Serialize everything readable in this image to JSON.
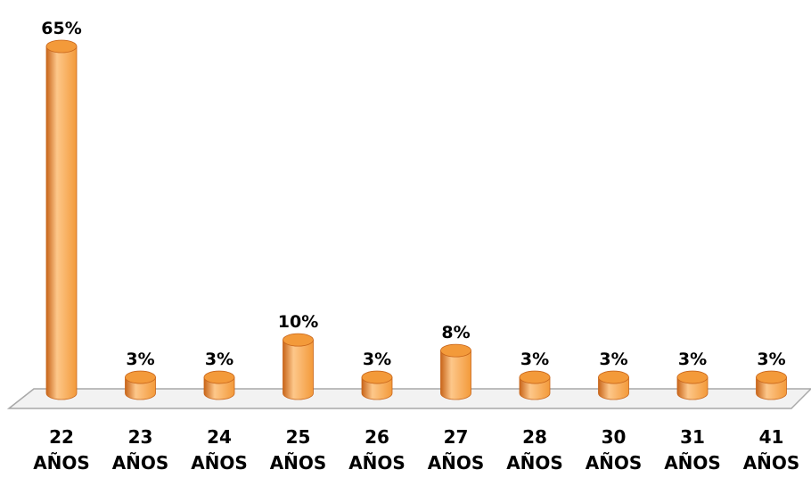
{
  "chart_data": {
    "type": "bar",
    "title": "",
    "xlabel": "",
    "ylabel": "",
    "categories": [
      [
        "22",
        "AÑOS"
      ],
      [
        "23",
        "AÑOS"
      ],
      [
        "24",
        "AÑOS"
      ],
      [
        "25",
        "AÑOS"
      ],
      [
        "26",
        "AÑOS"
      ],
      [
        "27",
        "AÑOS"
      ],
      [
        "28",
        "AÑOS"
      ],
      [
        "30",
        "AÑOS"
      ],
      [
        "31",
        "AÑOS"
      ],
      [
        "41",
        "AÑOS"
      ]
    ],
    "values": [
      65,
      3,
      3,
      10,
      3,
      8,
      3,
      3,
      3,
      3
    ],
    "data_labels": [
      "65%",
      "3%",
      "3%",
      "10%",
      "3%",
      "8%",
      "3%",
      "3%",
      "3%",
      "3%"
    ],
    "ylim": [
      0,
      65
    ],
    "grid": false,
    "legend": "none",
    "style": "3d-cylinder",
    "colors": {
      "bar": "#F39A3A",
      "bar_light": "#FDC78A",
      "bar_dark": "#C8651A",
      "floor": "#F2F2F2",
      "floor_edge": "#A8A8A8"
    }
  }
}
